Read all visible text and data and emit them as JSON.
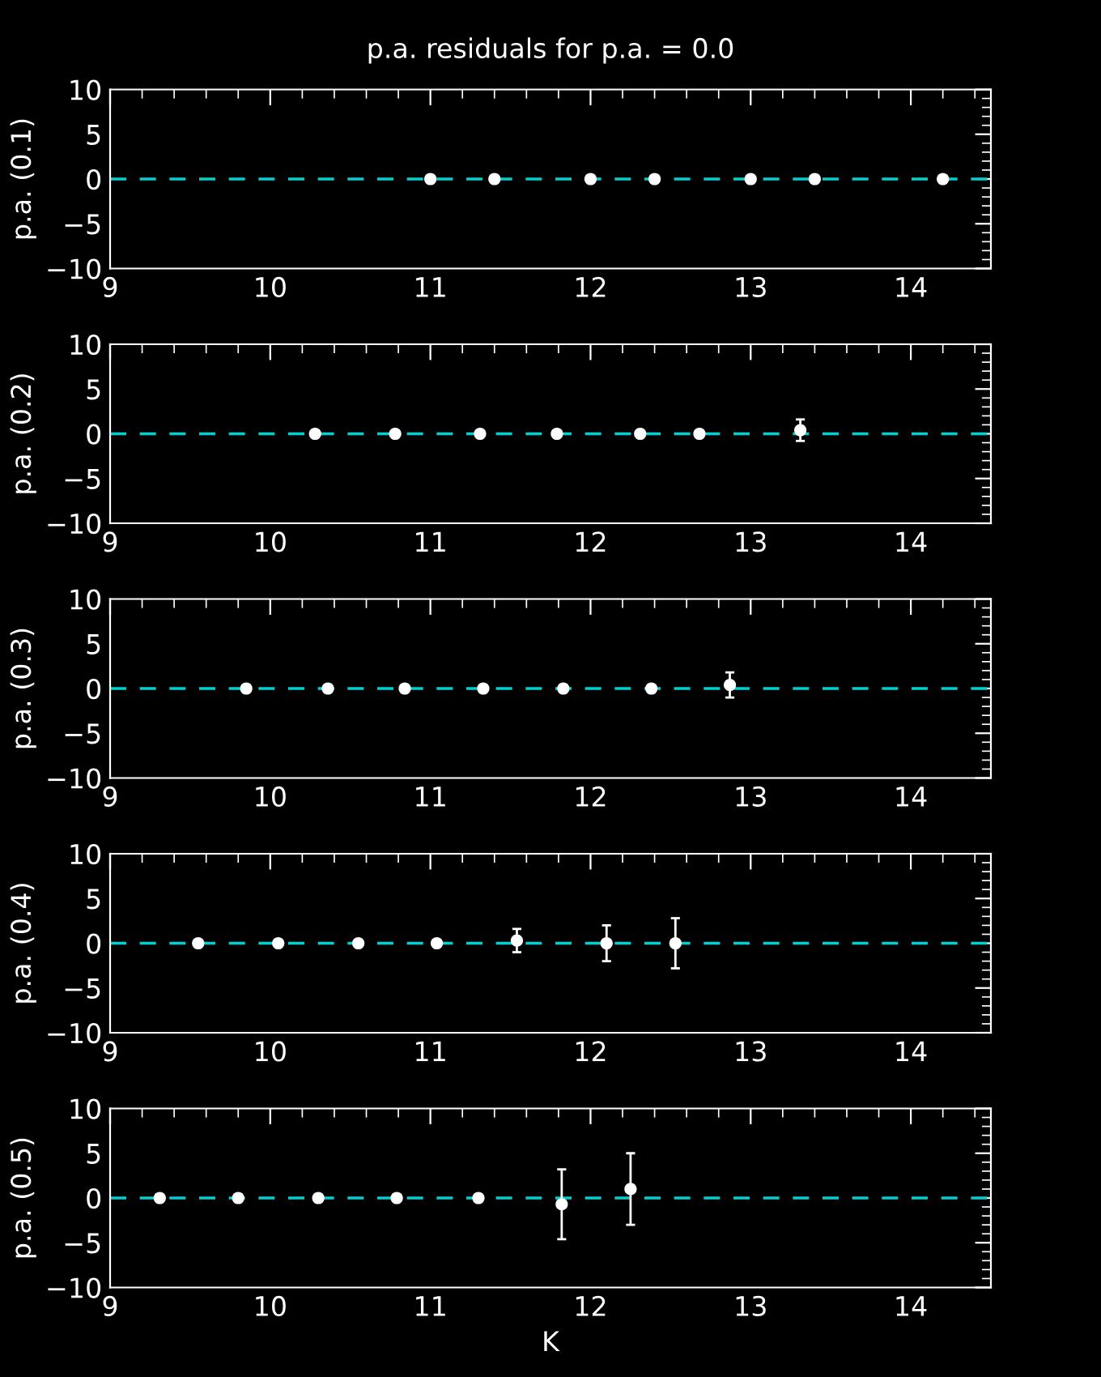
{
  "chart_data": [
    {
      "type": "scatter",
      "title": "p.a. residuals for p.a. = 0.0",
      "ylabel": "p.a. (0.1)",
      "marker": "circle",
      "series": [
        {
          "color": "#ffffff",
          "x": [
            11.0,
            11.4,
            12.0,
            12.4,
            13.0,
            13.4,
            14.2
          ],
          "values": [
            0,
            0,
            0,
            0,
            0,
            0,
            0
          ]
        }
      ],
      "xlim": [
        9,
        14.5
      ],
      "xticks": [
        9,
        10,
        11,
        12,
        13,
        14
      ],
      "ylim": [
        -10,
        10
      ],
      "yticks": [
        -10,
        -5,
        0,
        5,
        10
      ],
      "ref_lines": [
        {
          "axis": "y",
          "value": 0,
          "color": "#00d0d0",
          "line_style": "dashed"
        }
      ],
      "grid": false,
      "legend": false
    },
    {
      "type": "scatter",
      "ylabel": "p.a. (0.2)",
      "marker": "circle",
      "series": [
        {
          "color": "#ffffff",
          "x": [
            10.28,
            10.78,
            11.31,
            11.79,
            12.31,
            12.68,
            13.31
          ],
          "values": [
            0,
            0,
            0,
            0,
            0,
            0,
            0.4
          ],
          "errors": [
            null,
            null,
            null,
            null,
            null,
            null,
            1.2
          ]
        }
      ],
      "xlim": [
        9,
        14.5
      ],
      "xticks": [
        9,
        10,
        11,
        12,
        13,
        14
      ],
      "ylim": [
        -10,
        10
      ],
      "yticks": [
        -10,
        -5,
        0,
        5,
        10
      ],
      "ref_lines": [
        {
          "axis": "y",
          "value": 0,
          "color": "#00d0d0",
          "line_style": "dashed"
        }
      ],
      "grid": false,
      "legend": false
    },
    {
      "type": "scatter",
      "ylabel": "p.a. (0.3)",
      "marker": "circle",
      "series": [
        {
          "color": "#ffffff",
          "x": [
            9.85,
            10.36,
            10.84,
            11.33,
            11.83,
            12.38,
            12.87
          ],
          "values": [
            0,
            0,
            0,
            0,
            0,
            0,
            0.4
          ],
          "errors": [
            null,
            null,
            null,
            null,
            null,
            null,
            1.4
          ]
        }
      ],
      "xlim": [
        9,
        14.5
      ],
      "xticks": [
        9,
        10,
        11,
        12,
        13,
        14
      ],
      "ylim": [
        -10,
        10
      ],
      "yticks": [
        -10,
        -5,
        0,
        5,
        10
      ],
      "ref_lines": [
        {
          "axis": "y",
          "value": 0,
          "color": "#00d0d0",
          "line_style": "dashed"
        }
      ],
      "grid": false,
      "legend": false
    },
    {
      "type": "scatter",
      "ylabel": "p.a. (0.4)",
      "marker": "circle",
      "series": [
        {
          "color": "#ffffff",
          "x": [
            9.55,
            10.05,
            10.55,
            11.04,
            11.54,
            12.1,
            12.53
          ],
          "values": [
            0,
            0,
            0,
            0,
            0.3,
            0,
            0
          ],
          "errors": [
            null,
            null,
            null,
            null,
            1.3,
            2.0,
            2.8
          ]
        }
      ],
      "xlim": [
        9,
        14.5
      ],
      "xticks": [
        9,
        10,
        11,
        12,
        13,
        14
      ],
      "ylim": [
        -10,
        10
      ],
      "yticks": [
        -10,
        -5,
        0,
        5,
        10
      ],
      "ref_lines": [
        {
          "axis": "y",
          "value": 0,
          "color": "#00d0d0",
          "line_style": "dashed"
        }
      ],
      "grid": false,
      "legend": false
    },
    {
      "type": "scatter",
      "ylabel": "p.a. (0.5)",
      "xlabel": "K",
      "marker": "circle",
      "series": [
        {
          "color": "#ffffff",
          "x": [
            9.31,
            9.8,
            10.3,
            10.79,
            11.3,
            11.82,
            12.25
          ],
          "values": [
            0,
            0,
            0,
            0,
            0,
            -0.7,
            1.0
          ],
          "errors": [
            null,
            null,
            null,
            null,
            null,
            3.9,
            4.0
          ]
        }
      ],
      "xlim": [
        9,
        14.5
      ],
      "xticks": [
        9,
        10,
        11,
        12,
        13,
        14
      ],
      "ylim": [
        -10,
        10
      ],
      "yticks": [
        -10,
        -5,
        0,
        5,
        10
      ],
      "ref_lines": [
        {
          "axis": "y",
          "value": 0,
          "color": "#00d0d0",
          "line_style": "dashed"
        }
      ],
      "grid": false,
      "legend": false
    }
  ]
}
